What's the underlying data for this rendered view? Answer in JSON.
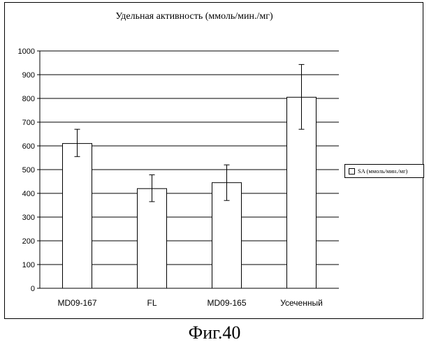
{
  "chart_data": {
    "type": "bar",
    "title": "Удельная активность (ммоль/мин./мг)",
    "categories": [
      "MD09-167",
      "FL",
      "MD09-165",
      "Усеченный"
    ],
    "series": [
      {
        "name": "SA (ммоль/мин./мг)",
        "values": [
          610,
          420,
          445,
          805
        ],
        "error_low": [
          555,
          365,
          370,
          670
        ],
        "error_high": [
          670,
          478,
          520,
          943
        ]
      }
    ],
    "ylim": [
      0,
      1000
    ],
    "yticks": [
      "0",
      "100",
      "200",
      "300",
      "400",
      "500",
      "600",
      "700",
      "800",
      "900",
      "1000"
    ],
    "grid": true,
    "legend_position": "right"
  },
  "caption": "Фиг.40",
  "colors": {
    "bar_fill": "#ffffff",
    "stroke": "#000000"
  }
}
